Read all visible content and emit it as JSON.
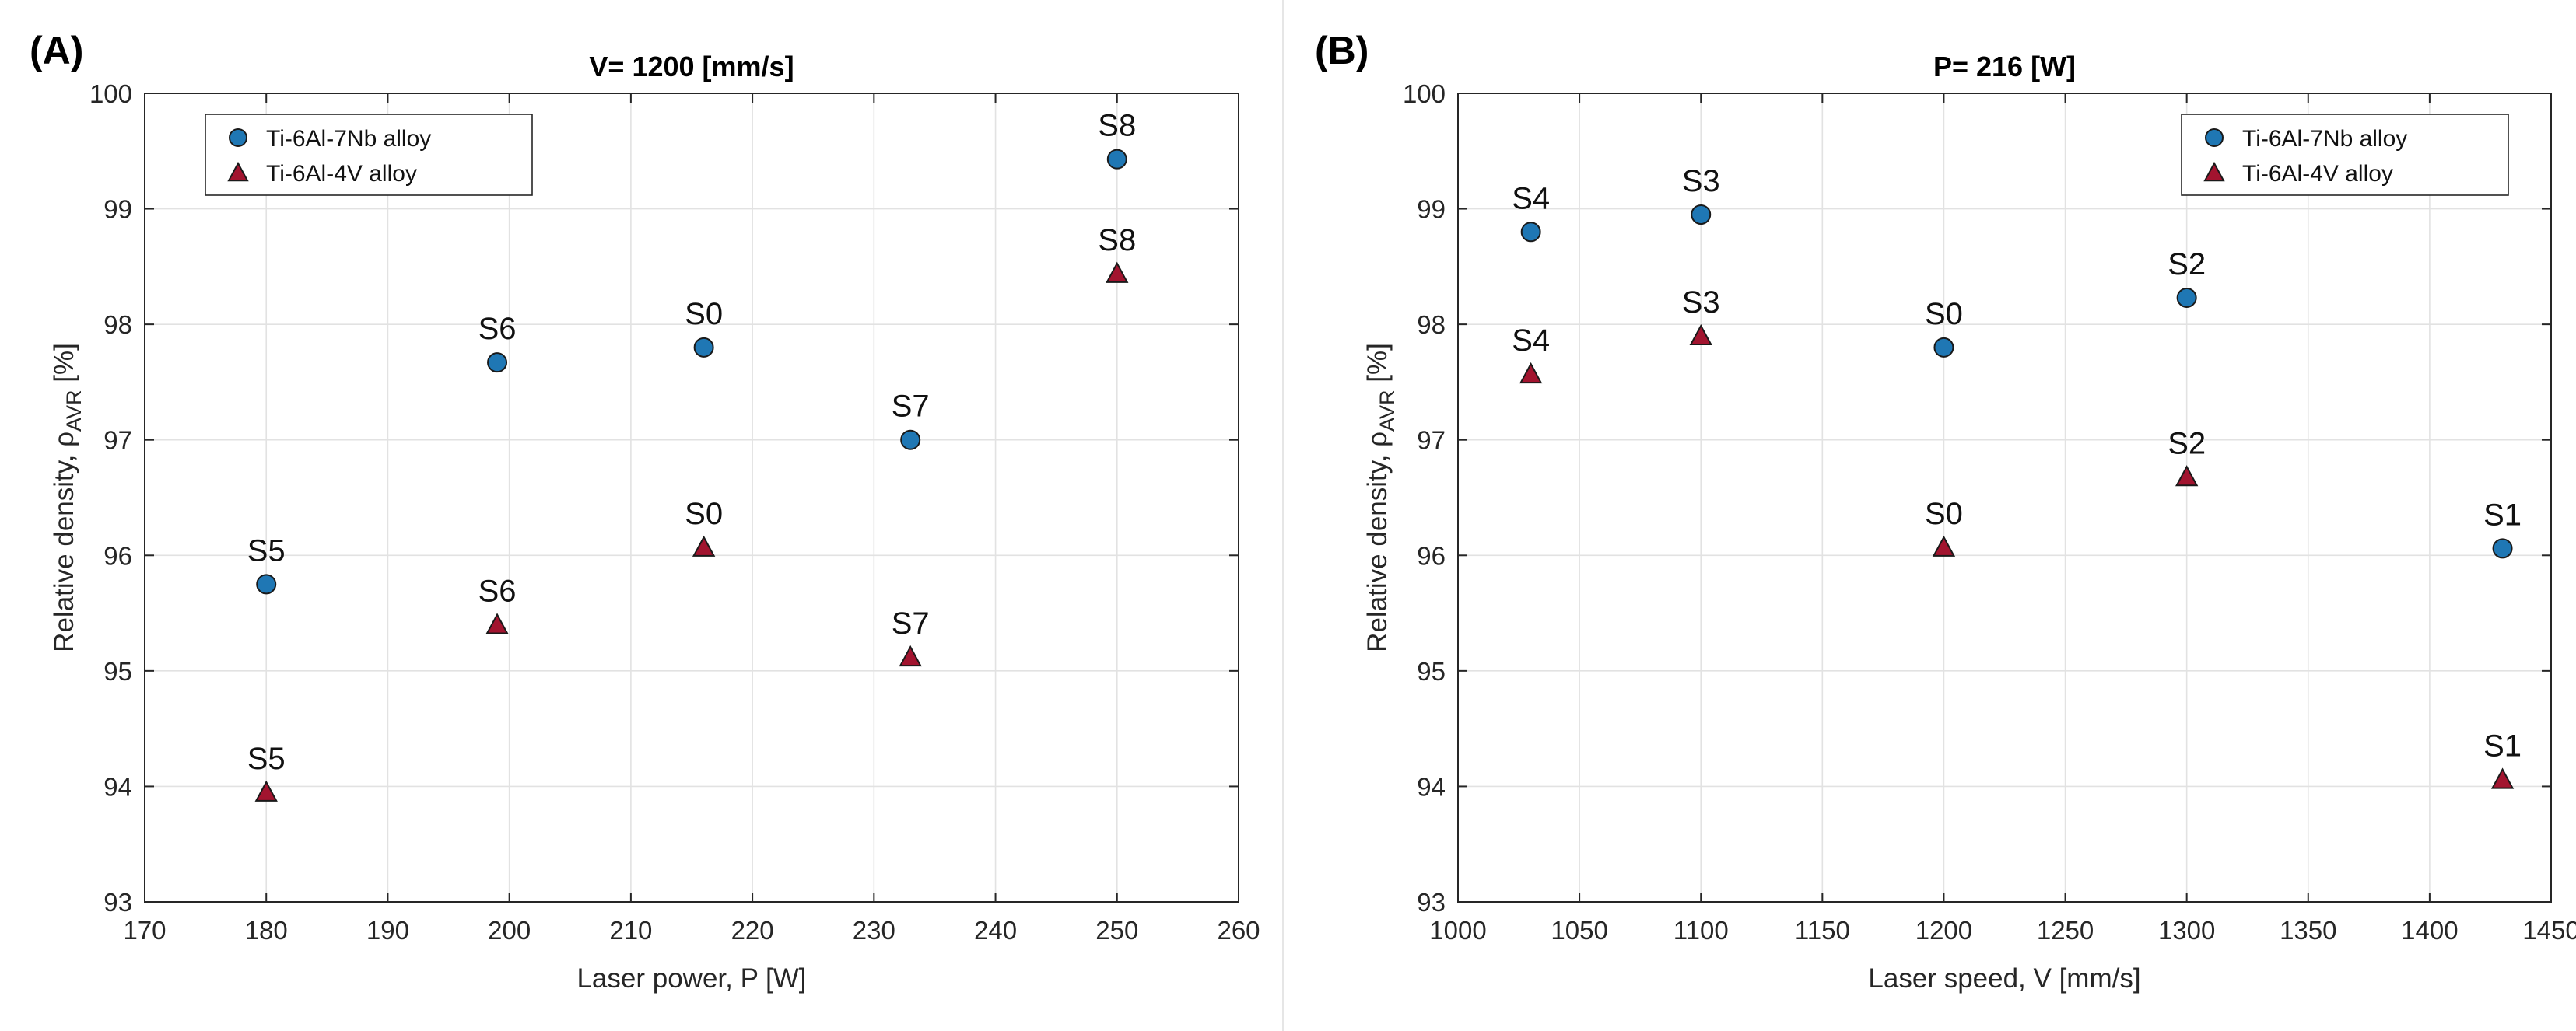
{
  "chart_data": [
    {
      "type": "scatter",
      "panel_label": "(A)",
      "title": "V= 1200 [mm/s]",
      "xlabel": "Laser power, P [W]",
      "ylabel_main": "Relative density, ρ",
      "ylabel_sub": "AVR",
      "ylabel_unit": " [%]",
      "xlim": [
        170,
        260
      ],
      "ylim": [
        93,
        100
      ],
      "xticks": [
        170,
        180,
        190,
        200,
        210,
        220,
        230,
        240,
        250,
        260
      ],
      "yticks": [
        93,
        94,
        95,
        96,
        97,
        98,
        99,
        100
      ],
      "legend_position": "top-left",
      "series": [
        {
          "name": "Ti-6Al-7Nb alloy",
          "marker": "circle",
          "color": "#1f77b4",
          "points": [
            {
              "x": 180,
              "y": 95.75,
              "label": "S5"
            },
            {
              "x": 199,
              "y": 97.67,
              "label": "S6"
            },
            {
              "x": 216,
              "y": 97.8,
              "label": "S0"
            },
            {
              "x": 233,
              "y": 97.0,
              "label": "S7"
            },
            {
              "x": 250,
              "y": 99.43,
              "label": "S8"
            }
          ]
        },
        {
          "name": "Ti-6Al-4V alloy",
          "marker": "triangle",
          "color": "#a2142f",
          "points": [
            {
              "x": 180,
              "y": 93.95,
              "label": "S5"
            },
            {
              "x": 199,
              "y": 95.4,
              "label": "S6"
            },
            {
              "x": 216,
              "y": 96.07,
              "label": "S0"
            },
            {
              "x": 233,
              "y": 95.12,
              "label": "S7"
            },
            {
              "x": 250,
              "y": 98.44,
              "label": "S8"
            }
          ]
        }
      ]
    },
    {
      "type": "scatter",
      "panel_label": "(B)",
      "title": "P= 216 [W]",
      "xlabel": "Laser speed, V [mm/s]",
      "ylabel_main": "Relative density, ρ",
      "ylabel_sub": "AVR",
      "ylabel_unit": " [%]",
      "xlim": [
        1000,
        1450
      ],
      "ylim": [
        93,
        100
      ],
      "xticks": [
        1000,
        1050,
        1100,
        1150,
        1200,
        1250,
        1300,
        1350,
        1400,
        1450
      ],
      "yticks": [
        93,
        94,
        95,
        96,
        97,
        98,
        99,
        100
      ],
      "legend_position": "top-right",
      "series": [
        {
          "name": "Ti-6Al-7Nb alloy",
          "marker": "circle",
          "color": "#1f77b4",
          "points": [
            {
              "x": 1030,
              "y": 98.8,
              "label": "S4"
            },
            {
              "x": 1100,
              "y": 98.95,
              "label": "S3"
            },
            {
              "x": 1200,
              "y": 97.8,
              "label": "S0"
            },
            {
              "x": 1300,
              "y": 98.23,
              "label": "S2"
            },
            {
              "x": 1430,
              "y": 96.06,
              "label": "S1"
            }
          ]
        },
        {
          "name": "Ti-6Al-4V alloy",
          "marker": "triangle",
          "color": "#a2142f",
          "points": [
            {
              "x": 1030,
              "y": 97.57,
              "label": "S4"
            },
            {
              "x": 1100,
              "y": 97.9,
              "label": "S3"
            },
            {
              "x": 1200,
              "y": 96.07,
              "label": "S0"
            },
            {
              "x": 1300,
              "y": 96.68,
              "label": "S2"
            },
            {
              "x": 1430,
              "y": 94.06,
              "label": "S1"
            }
          ]
        }
      ]
    }
  ]
}
